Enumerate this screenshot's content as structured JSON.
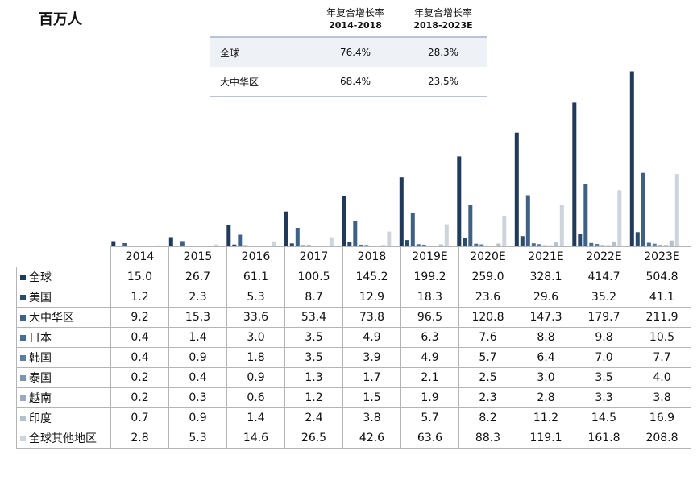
{
  "unit_label": "百万人",
  "cagr_table": {
    "headers": [
      {
        "line1": "年复合增长率",
        "line2": "2014-2018"
      },
      {
        "line1": "年复合增长率",
        "line2": "2018-2023E"
      }
    ],
    "rows": [
      {
        "label": "全球",
        "values": [
          "76.4%",
          "28.3%"
        ]
      },
      {
        "label": "大中华区",
        "values": [
          "68.4%",
          "23.5%"
        ]
      }
    ]
  },
  "chart_data": {
    "type": "bar",
    "categories": [
      "2014",
      "2015",
      "2016",
      "2017",
      "2018",
      "2019E",
      "2020E",
      "2021E",
      "2022E",
      "2023E"
    ],
    "series": [
      {
        "name": "全球",
        "color": "#1f3a5a",
        "values": [
          15.0,
          26.7,
          61.1,
          100.5,
          145.2,
          199.2,
          259.0,
          328.1,
          414.7,
          504.8
        ]
      },
      {
        "name": "美国",
        "color": "#2b4a6f",
        "values": [
          1.2,
          2.3,
          5.3,
          8.7,
          12.9,
          18.3,
          23.6,
          29.6,
          35.2,
          41.1
        ]
      },
      {
        "name": "大中华区",
        "color": "#3f6185",
        "values": [
          9.2,
          15.3,
          33.6,
          53.4,
          73.8,
          96.5,
          120.8,
          147.3,
          179.7,
          211.9
        ]
      },
      {
        "name": "日本",
        "color": "#4a6d93",
        "values": [
          0.4,
          1.4,
          3.0,
          3.5,
          4.9,
          6.3,
          7.6,
          8.8,
          9.8,
          10.5
        ]
      },
      {
        "name": "韩国",
        "color": "#5b7da3",
        "values": [
          0.4,
          0.9,
          1.8,
          3.5,
          3.9,
          4.9,
          5.7,
          6.4,
          7.0,
          7.7
        ]
      },
      {
        "name": "泰国",
        "color": "#7f95ad",
        "values": [
          0.2,
          0.4,
          0.9,
          1.3,
          1.7,
          2.1,
          2.5,
          3.0,
          3.5,
          4.0
        ]
      },
      {
        "name": "越南",
        "color": "#9aabbf",
        "values": [
          0.2,
          0.3,
          0.6,
          1.2,
          1.5,
          1.9,
          2.3,
          2.8,
          3.3,
          3.8
        ]
      },
      {
        "name": "印度",
        "color": "#b3c0ce",
        "values": [
          0.7,
          0.9,
          1.4,
          2.4,
          3.8,
          5.7,
          8.2,
          11.2,
          14.5,
          16.9
        ]
      },
      {
        "name": "全球其他地区",
        "color": "#cdd4dc",
        "values": [
          2.8,
          5.3,
          14.6,
          26.5,
          42.6,
          63.6,
          88.3,
          119.1,
          161.8,
          208.8
        ]
      }
    ],
    "ylim": [
      0,
      520
    ]
  }
}
